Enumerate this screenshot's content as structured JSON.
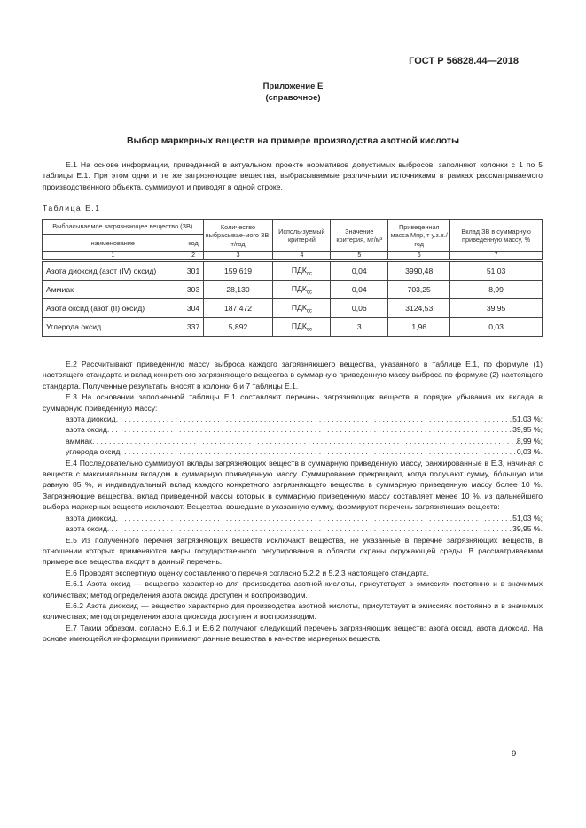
{
  "header": {
    "standard": "ГОСТ Р 56828.44—2018"
  },
  "appendix": {
    "title": "Приложение Е",
    "subtitle": "(справочное)"
  },
  "section_title": "Выбор маркерных веществ на примере производства азотной кислоты",
  "paragraphs": {
    "e1": "Е.1 На основе информации, приведенной в актуальном проекте нормативов допустимых выбросов, заполняют колонки с 1 по 5 таблицы Е.1. При этом одни и те же загрязняющие вещества, выбрасываемые различными источниками в рамках рассматриваемого производственного объекта, суммируют и приводят в одной строке.",
    "e2": "Е.2 Рассчитывают приведенную массу выброса каждого загрязняющего вещества, указанного в таблице Е.1, по формуле (1) настоящего стандарта и вклад конкретного загрязняющего вещества в суммарную приведенную массу выброса по формуле (2) настоящего стандарта. Полученные результаты вносят в колонки 6 и 7 таблицы Е.1.",
    "e3": "Е.3 На основании заполненной таблицы Е.1 составляют перечень загрязняющих веществ в порядке убывания их вклада в суммарную приведенную массу:",
    "e4": "Е.4 Последовательно суммируют вклады загрязняющих веществ в суммарную приведенную массу, ранжированные в Е.3, начиная с веществ с максимальным вкладом в суммарную приведенную массу. Суммирование прекращают, когда получают сумму, бо́льшую или равную 85 %, и индивидуальный вклад каждого конкретного загрязняющего вещества в суммарную приведенную массу более 10 %. Загрязняющие вещества, вклад приведенной массы которых в суммарную приведенную массу составляет менее 10 %, из дальнейшего выбора маркерных веществ исключают. Вещества, вошедшие в указанную сумму, формируют перечень загрязняющих веществ:",
    "e5": "Е.5 Из полученного перечня загрязняющих веществ исключают вещества, не указанные в перечне загрязняющих веществ, в отношении которых применяются меры государственного регулирования в области охраны окружающей среды. В рассматриваемом примере все вещества входят в данный перечень.",
    "e6": "Е.6 Проводят экспертную оценку составленного перечня согласно 5.2.2 и 5.2.3 настоящего стандарта.",
    "e61": "Е.6.1 Азота оксид — вещество характерно для производства азотной кислоты, присутствует в эмиссиях постоянно и в значимых количествах; метод определения азота оксида доступен и воспроизводим.",
    "e62": "Е.6.2 Азота диоксид — вещество характерно для производства азотной кислоты, присутствует в эмиссиях постоянно и в значимых количествах; метод определения азота диоксида доступен и воспроизводим.",
    "e7": "Е.7 Таким образом, согласно Е.6.1 и Е.6.2 получают следующий перечень загрязняющих веществ: азота оксид, азота диоксид. На основе имеющейся информации принимают данные вещества в качестве маркерных веществ."
  },
  "list_e3": [
    {
      "name": "азота диоксид",
      "value": "51,03 %;"
    },
    {
      "name": "азота оксид",
      "value": "39,95 %;"
    },
    {
      "name": "аммиак",
      "value": "8,99 %;"
    },
    {
      "name": "углерода оксид",
      "value": "0,03 %."
    }
  ],
  "list_e4": [
    {
      "name": "азота диоксид",
      "value": "51,03 %;"
    },
    {
      "name": "азота оксид",
      "value": "39,95 %."
    }
  ],
  "table": {
    "caption": "Таблица Е.1",
    "headers": {
      "substance": "Выбрасываемое загрязняющее вещество (ЗВ)",
      "name": "наименование",
      "code": "код",
      "quantity": "Количество выбрасывае-мого ЗВ, т/год",
      "criterion": "Исполь-зуемый критерий",
      "criterion_value": "Значение критерия, мг/м³",
      "reduced_mass": "Приведенная масса Mпр, т у.з.в./год",
      "contribution": "Вклад ЗВ в суммарную приведенную массу, %"
    },
    "column_numbers": [
      "1",
      "2",
      "3",
      "4",
      "5",
      "6",
      "7"
    ],
    "rows": [
      {
        "name": "Азота диоксид (азот (IV) оксид)",
        "code": "301",
        "quantity": "159,619",
        "criterion": "ПДК",
        "criterion_sub": "сс",
        "value": "0,04",
        "mass": "3990,48",
        "contribution": "51,03"
      },
      {
        "name": "Аммиак",
        "code": "303",
        "quantity": "28,130",
        "criterion": "ПДК",
        "criterion_sub": "сс",
        "value": "0,04",
        "mass": "703,25",
        "contribution": "8,99"
      },
      {
        "name": "Азота оксид (азот (II) оксид)",
        "code": "304",
        "quantity": "187,472",
        "criterion": "ПДК",
        "criterion_sub": "сс",
        "value": "0,06",
        "mass": "3124,53",
        "contribution": "39,95"
      },
      {
        "name": "Углерода оксид",
        "code": "337",
        "quantity": "5,892",
        "criterion": "ПДК",
        "criterion_sub": "сс",
        "value": "3",
        "mass": "1,96",
        "contribution": "0,03"
      }
    ]
  },
  "page_number": "9"
}
